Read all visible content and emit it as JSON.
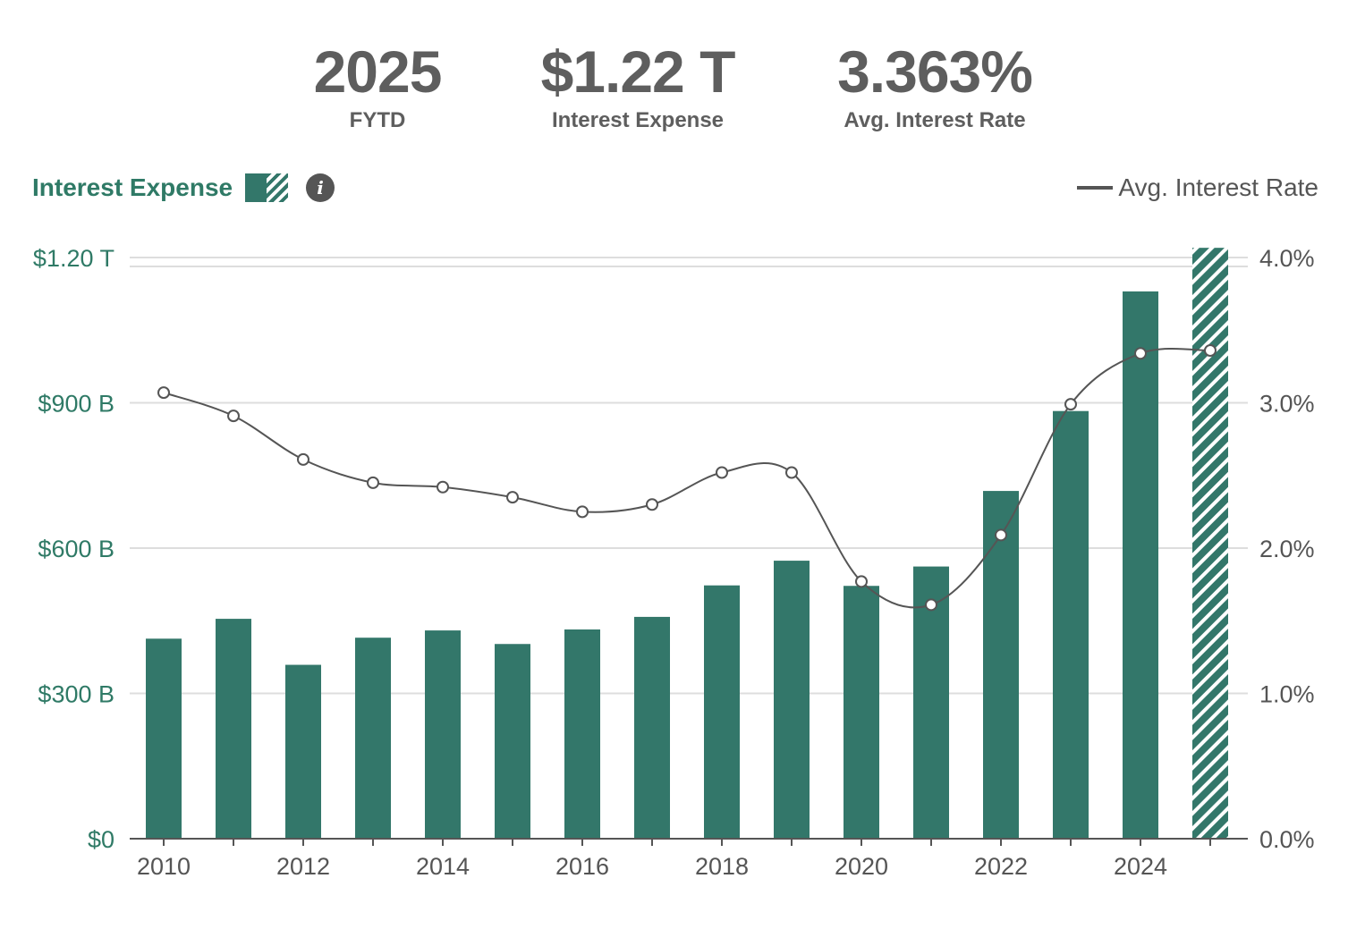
{
  "summary": {
    "year": "2025",
    "year_label": "FYTD",
    "expense": "$1.22 T",
    "expense_label": "Interest Expense",
    "rate": "3.363%",
    "rate_label": "Avg. Interest Rate"
  },
  "legend": {
    "left_title": "Interest Expense",
    "info_icon": "i",
    "right_title": "Avg. Interest Rate"
  },
  "colors": {
    "bar": "#33776a",
    "line": "#555555",
    "grid": "#dddddd",
    "accent_text": "#2f7a66"
  },
  "chart_data": {
    "type": "bar",
    "title": "Interest Expense",
    "categories": [
      2010,
      2011,
      2012,
      2013,
      2014,
      2015,
      2016,
      2017,
      2018,
      2019,
      2020,
      2021,
      2022,
      2023,
      2024,
      2025
    ],
    "series": [
      {
        "name": "Interest Expense",
        "axis": "left",
        "unit": "billions USD",
        "values": [
          413,
          454,
          359,
          415,
          430,
          402,
          432,
          458,
          523,
          574,
          522,
          562,
          718,
          883,
          1130,
          1220
        ],
        "fytd_partial_index": 15
      },
      {
        "name": "Avg. Interest Rate",
        "axis": "right",
        "type": "line",
        "unit": "percent",
        "values": [
          3.07,
          2.91,
          2.61,
          2.45,
          2.42,
          2.35,
          2.25,
          2.3,
          2.52,
          2.52,
          1.77,
          1.61,
          2.09,
          2.99,
          3.34,
          3.36
        ]
      }
    ],
    "y_left": {
      "min": 0,
      "max": 1200,
      "ticks": [
        0,
        300,
        600,
        900,
        1200
      ],
      "tick_labels": [
        "$0",
        "$300 B",
        "$600 B",
        "$900 B",
        "$1.20 T"
      ]
    },
    "y_right": {
      "min": 0,
      "max": 4,
      "ticks": [
        0,
        1,
        2,
        3,
        4
      ],
      "tick_labels": [
        "0.0%",
        "1.0%",
        "2.0%",
        "3.0%",
        "4.0%"
      ]
    },
    "x_tick_labels": [
      "2010",
      "2012",
      "2014",
      "2016",
      "2018",
      "2020",
      "2022",
      "2024"
    ],
    "grid": true,
    "legend_placement": "top"
  }
}
